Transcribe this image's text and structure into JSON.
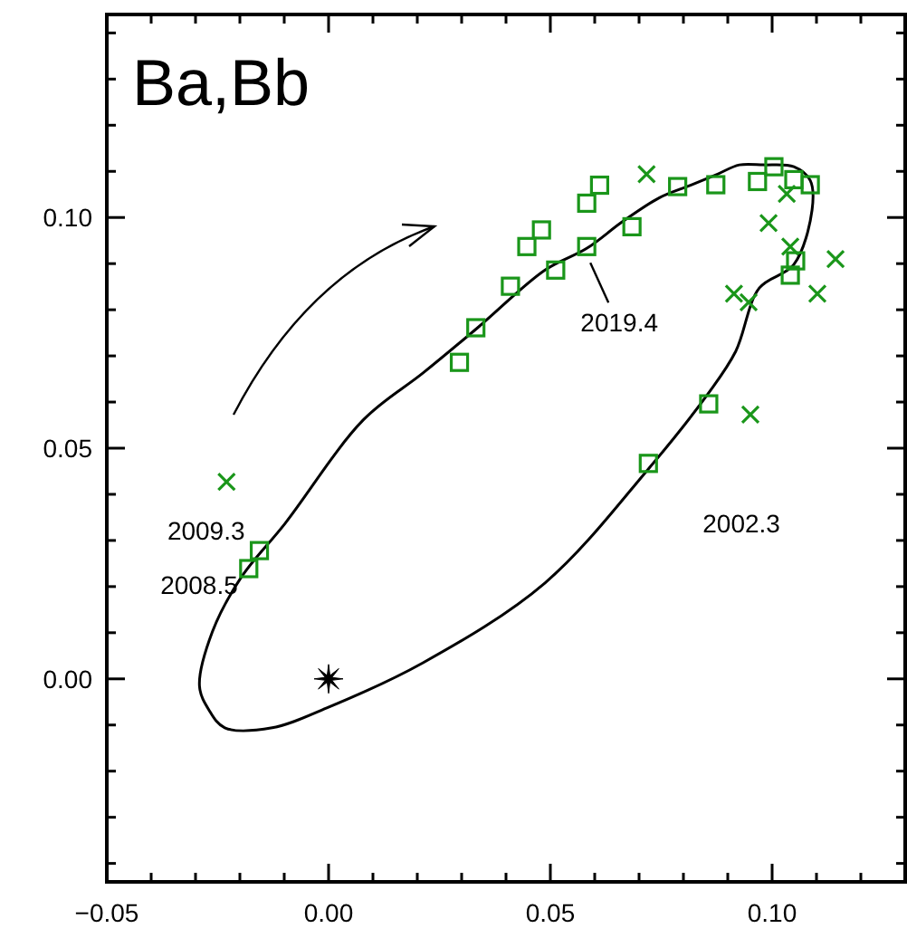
{
  "chart_data": {
    "type": "scatter",
    "title": "Ba,Bb",
    "xlim": [
      -0.05,
      0.13
    ],
    "ylim": [
      -0.044,
      0.144
    ],
    "xticks": [
      {
        "value": -0.05,
        "label": "−0.05"
      },
      {
        "value": -0.04,
        "label": null
      },
      {
        "value": -0.03,
        "label": null
      },
      {
        "value": -0.02,
        "label": null
      },
      {
        "value": -0.01,
        "label": null
      },
      {
        "value": 0,
        "label": "0.00"
      },
      {
        "value": 0.01,
        "label": null
      },
      {
        "value": 0.02,
        "label": null
      },
      {
        "value": 0.03,
        "label": null
      },
      {
        "value": 0.04,
        "label": null
      },
      {
        "value": 0.05,
        "label": "0.05"
      },
      {
        "value": 0.06,
        "label": null
      },
      {
        "value": 0.07,
        "label": null
      },
      {
        "value": 0.08,
        "label": null
      },
      {
        "value": 0.09,
        "label": null
      },
      {
        "value": 0.1,
        "label": "0.10"
      },
      {
        "value": 0.11,
        "label": null
      },
      {
        "value": 0.12,
        "label": null
      }
    ],
    "yticks": [
      {
        "value": -0.04,
        "label": null
      },
      {
        "value": -0.03,
        "label": null
      },
      {
        "value": -0.02,
        "label": null
      },
      {
        "value": -0.01,
        "label": null
      },
      {
        "value": 0,
        "label": "0.00"
      },
      {
        "value": 0.01,
        "label": null
      },
      {
        "value": 0.02,
        "label": null
      },
      {
        "value": 0.03,
        "label": null
      },
      {
        "value": 0.04,
        "label": null
      },
      {
        "value": 0.05,
        "label": "0.05"
      },
      {
        "value": 0.06,
        "label": null
      },
      {
        "value": 0.07,
        "label": null
      },
      {
        "value": 0.08,
        "label": null
      },
      {
        "value": 0.09,
        "label": null
      },
      {
        "value": 0.1,
        "label": "0.10"
      },
      {
        "value": 0.11,
        "label": null
      },
      {
        "value": 0.12,
        "label": null
      },
      {
        "value": 0.13,
        "label": null
      },
      {
        "value": 0.14,
        "label": null
      }
    ],
    "grid": false,
    "series": [
      {
        "color": "#1a961a",
        "marker": "square",
        "x": [
          0.0295,
          0.0332,
          0.041,
          0.0447,
          0.048,
          0.0512,
          0.0582,
          0.0582,
          0.0611,
          0.0684,
          0.0787,
          0.0873,
          0.0967,
          0.1004,
          0.1049,
          0.1086,
          0.1053,
          0.1041,
          0.0857,
          0.0721,
          -0.0156,
          -0.018
        ],
        "values": [
          0.0686,
          0.0761,
          0.0851,
          0.0937,
          0.0973,
          0.0886,
          0.0937,
          0.1031,
          0.107,
          0.098,
          0.1067,
          0.1071,
          0.1078,
          0.111,
          0.1082,
          0.1071,
          0.0906,
          0.0875,
          0.0596,
          0.0467,
          0.0278,
          0.0239
        ]
      },
      {
        "color": "#1a961a",
        "marker": "cross",
        "x": [
          0.0717,
          0.0992,
          0.1033,
          0.1041,
          0.1143,
          0.1102,
          0.0914,
          0.0947,
          0.0951,
          -0.023
        ],
        "values": [
          0.1094,
          0.0988,
          0.1051,
          0.0937,
          0.091,
          0.0835,
          0.0835,
          0.0816,
          0.0573,
          0.0427
        ]
      },
      {
        "color": "#000000",
        "marker": "star",
        "x": [
          0
        ],
        "values": [
          0
        ]
      }
    ],
    "annotations": [
      {
        "text": "2019.4",
        "x": 0.0582,
        "y": 0.0933
      },
      {
        "text": "2002.3",
        "x": 0.0721,
        "y": 0.0467
      },
      {
        "text": "2009.3",
        "x": -0.0156,
        "y": 0.0278
      },
      {
        "text": "2008.5",
        "x": -0.018,
        "y": 0.0239
      }
    ]
  }
}
